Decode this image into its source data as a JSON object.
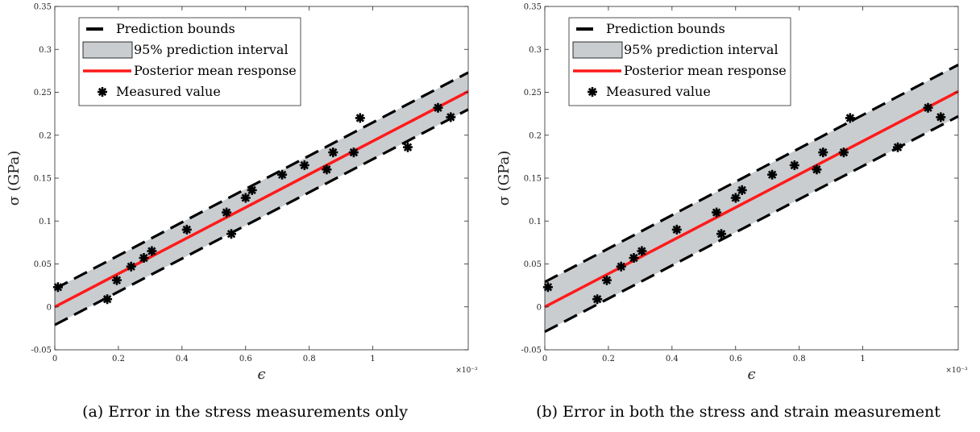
{
  "chart_data": [
    {
      "type": "scatter",
      "caption": "(a) Error in the stress measurements only",
      "xlabel": "ϵ",
      "ylabel": "σ (GPa)",
      "x_multiplier_label": "×10⁻³",
      "xlim": [
        0,
        1.3
      ],
      "ylim": [
        -0.05,
        0.35
      ],
      "xticks": [
        0,
        0.2,
        0.4,
        0.6,
        0.8,
        1
      ],
      "xtick_labels": [
        "0",
        "0.2",
        "0.4",
        "0.6",
        "0.8",
        "1"
      ],
      "yticks": [
        -0.05,
        0,
        0.05,
        0.1,
        0.15,
        0.2,
        0.25,
        0.3,
        0.35
      ],
      "ytick_labels": [
        "-0.05",
        "0",
        "0.05",
        "0.1",
        "0.15",
        "0.2",
        "0.25",
        "0.3",
        "0.35"
      ],
      "legend_position": "top-left",
      "legend": [
        "Prediction bounds",
        "95% prediction interval",
        "Posterior mean response",
        "Measured value"
      ],
      "mean_line": {
        "x": [
          0,
          1.3
        ],
        "y": [
          0,
          0.251
        ]
      },
      "prediction_bounds": {
        "x": [
          0,
          1.3
        ],
        "upper": [
          0.021,
          0.273
        ],
        "lower": [
          -0.021,
          0.23
        ]
      },
      "measured": {
        "x": [
          0.01,
          0.165,
          0.195,
          0.24,
          0.28,
          0.305,
          0.415,
          0.54,
          0.555,
          0.6,
          0.62,
          0.715,
          0.785,
          0.855,
          0.875,
          0.94,
          0.96,
          1.11,
          1.205,
          1.245
        ],
        "y": [
          0.023,
          0.009,
          0.031,
          0.047,
          0.057,
          0.065,
          0.09,
          0.11,
          0.085,
          0.127,
          0.136,
          0.154,
          0.165,
          0.16,
          0.18,
          0.18,
          0.22,
          0.186,
          0.232,
          0.221
        ]
      },
      "colors": {
        "band": "#c9cdd0",
        "mean": "#ff1a1a",
        "bounds": "#000000",
        "points": "#000000"
      }
    },
    {
      "type": "scatter",
      "caption": "(b) Error in both the stress and strain measurement",
      "xlabel": "ϵ",
      "ylabel": "σ (GPa)",
      "x_multiplier_label": "×10⁻³",
      "xlim": [
        0,
        1.3
      ],
      "ylim": [
        -0.05,
        0.35
      ],
      "xticks": [
        0,
        0.2,
        0.4,
        0.6,
        0.8,
        1
      ],
      "xtick_labels": [
        "0",
        "0.2",
        "0.4",
        "0.6",
        "0.8",
        "1"
      ],
      "yticks": [
        -0.05,
        0,
        0.05,
        0.1,
        0.15,
        0.2,
        0.25,
        0.3,
        0.35
      ],
      "ytick_labels": [
        "-0.05",
        "0",
        "0.05",
        "0.1",
        "0.15",
        "0.2",
        "0.25",
        "0.3",
        "0.35"
      ],
      "legend_position": "top-left",
      "legend": [
        "Prediction bounds",
        "95% prediction interval",
        "Posterior mean response",
        "Measured value"
      ],
      "mean_line": {
        "x": [
          0,
          1.3
        ],
        "y": [
          0,
          0.251
        ]
      },
      "prediction_bounds": {
        "x": [
          0,
          1.3
        ],
        "upper": [
          0.029,
          0.282
        ],
        "lower": [
          -0.029,
          0.222
        ]
      },
      "measured": {
        "x": [
          0.01,
          0.165,
          0.195,
          0.24,
          0.28,
          0.305,
          0.415,
          0.54,
          0.555,
          0.6,
          0.62,
          0.715,
          0.785,
          0.855,
          0.875,
          0.94,
          0.96,
          1.11,
          1.205,
          1.245
        ],
        "y": [
          0.023,
          0.009,
          0.031,
          0.047,
          0.057,
          0.065,
          0.09,
          0.11,
          0.085,
          0.127,
          0.136,
          0.154,
          0.165,
          0.16,
          0.18,
          0.18,
          0.22,
          0.186,
          0.232,
          0.221
        ]
      },
      "colors": {
        "band": "#c9cdd0",
        "mean": "#ff1a1a",
        "bounds": "#000000",
        "points": "#000000"
      }
    }
  ]
}
